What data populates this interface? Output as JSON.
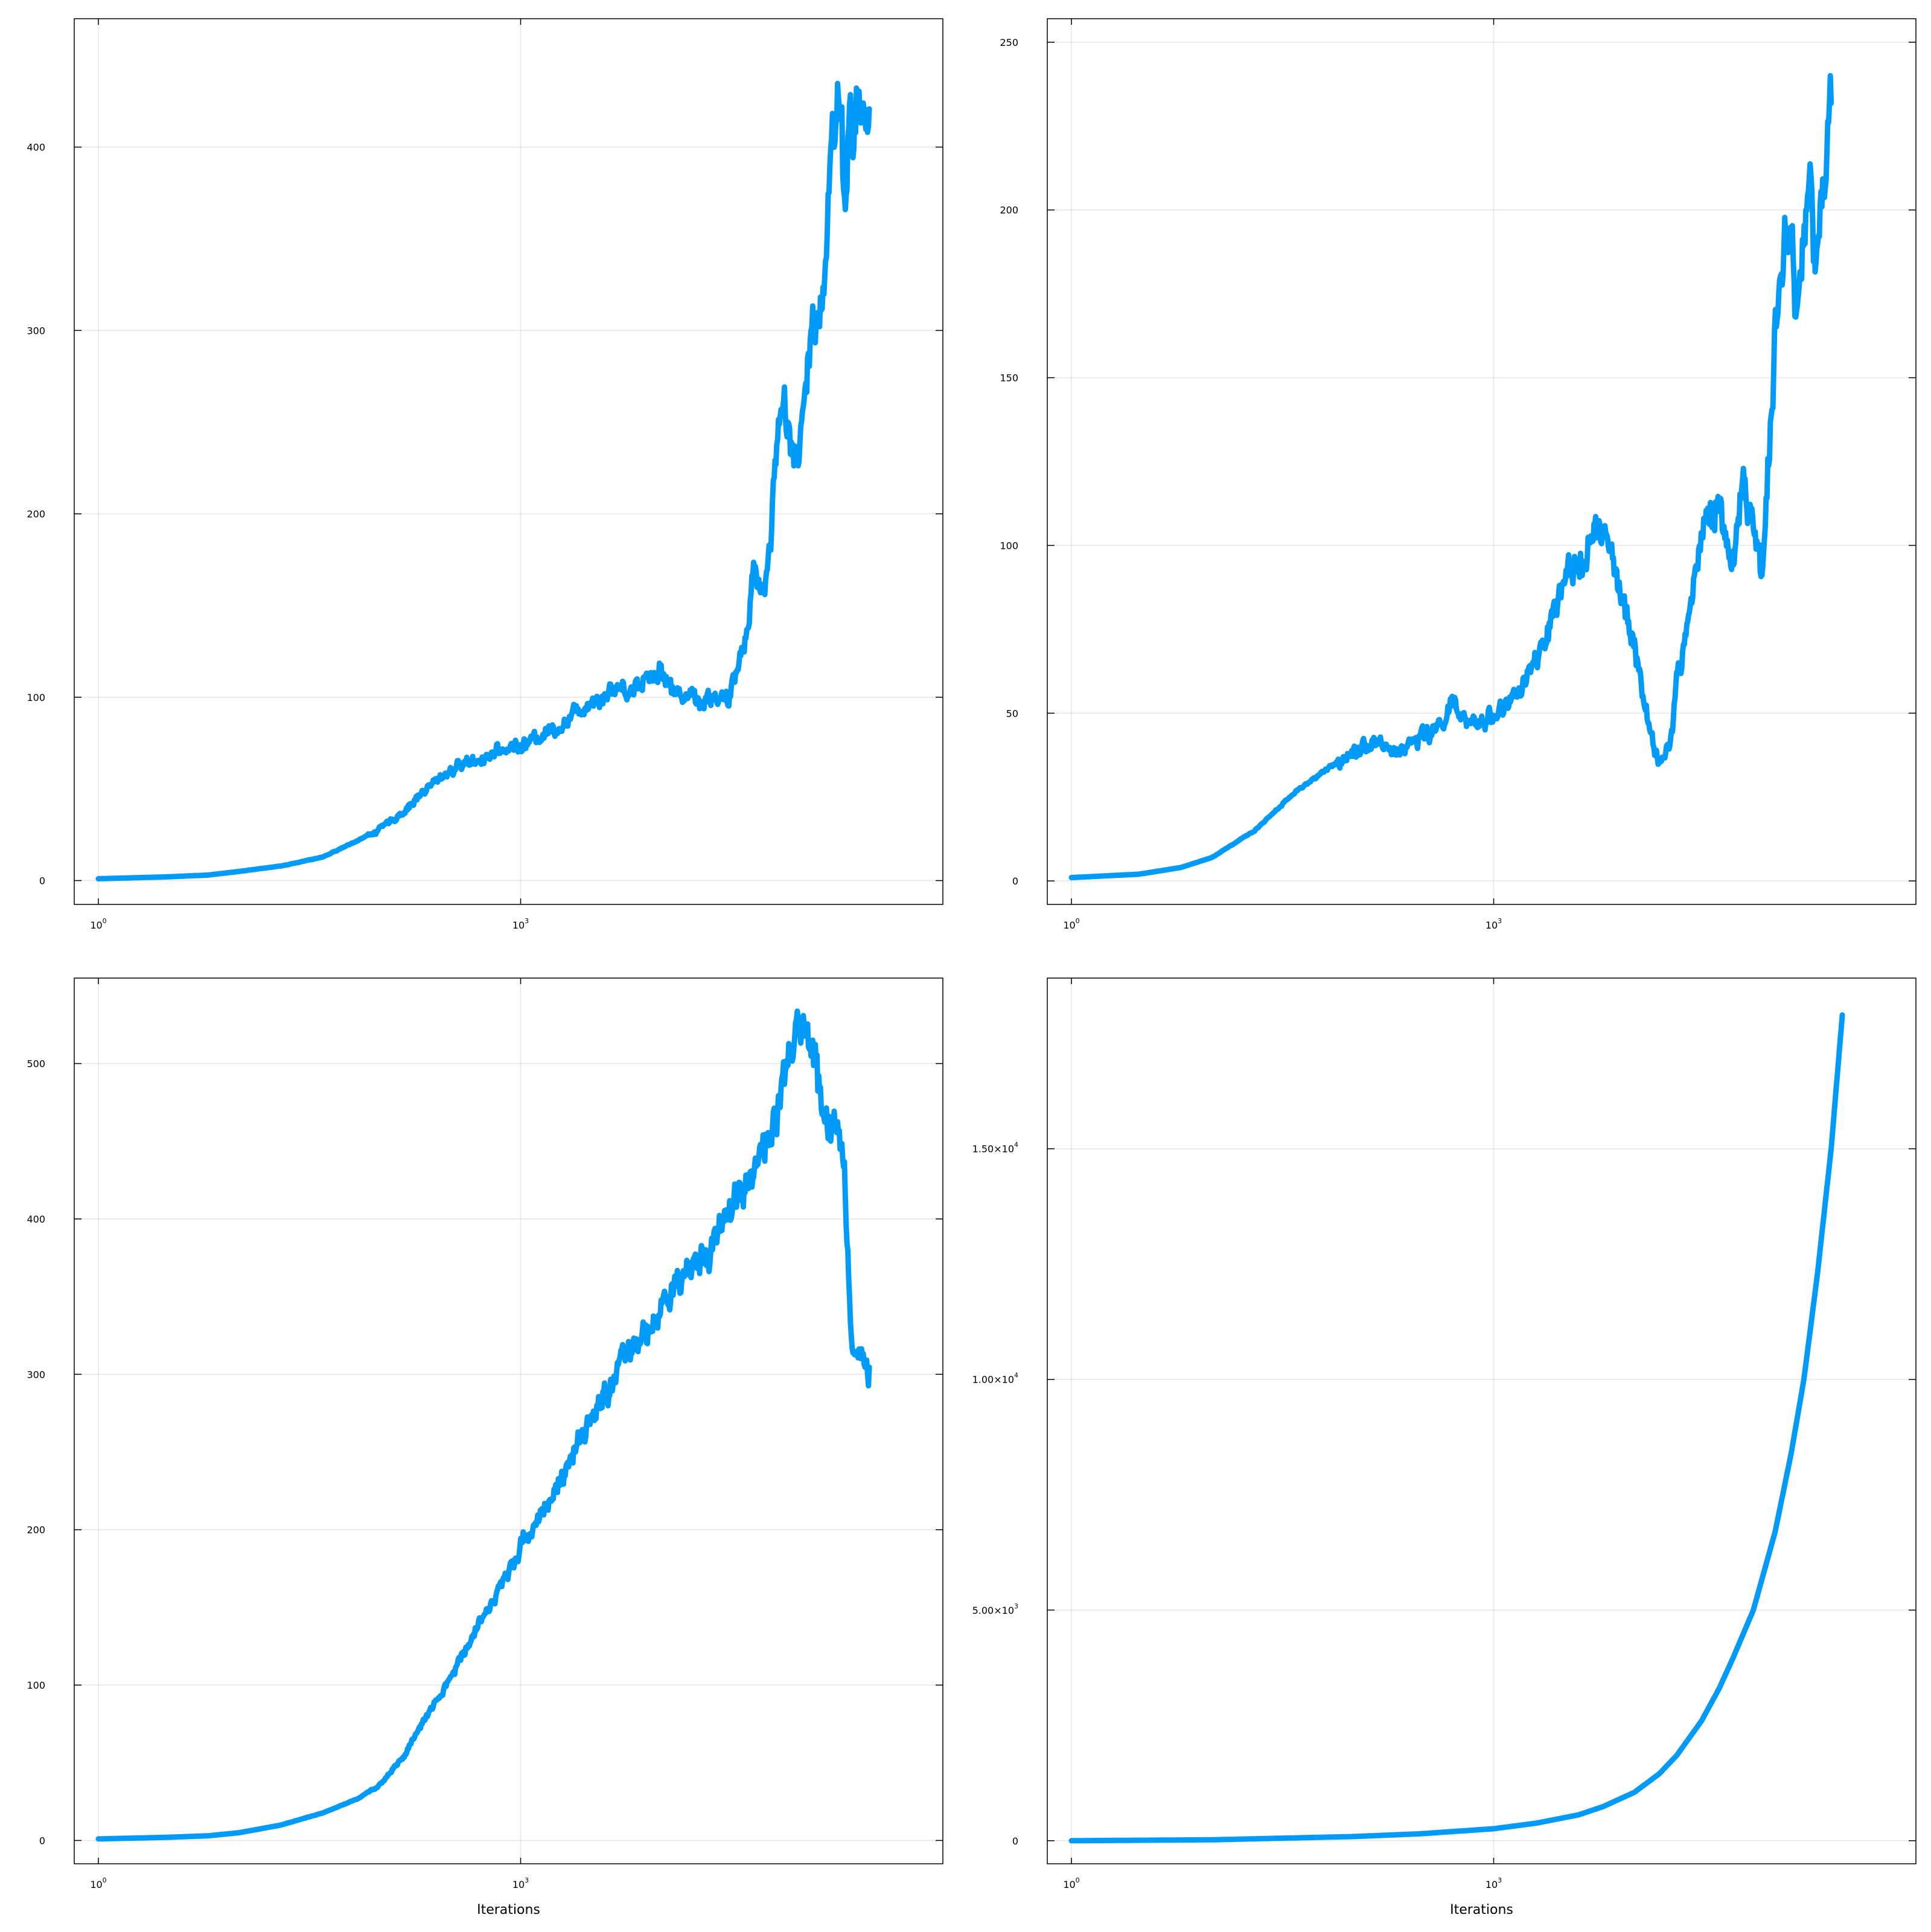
{
  "chart_data": [
    {
      "type": "line",
      "title": "",
      "xlabel": "",
      "ylabel": "",
      "xscale": "log10",
      "xlim": [
        1,
        1000000
      ],
      "ylim": [
        -13,
        470
      ],
      "grid": true,
      "legend": "none",
      "color": "#009af9",
      "xticks": [
        {
          "value": 1,
          "base": "10",
          "exp": "0"
        },
        {
          "value": 1000,
          "base": "10",
          "exp": "3"
        }
      ],
      "yticks": [
        {
          "value": 0,
          "label": "0"
        },
        {
          "value": 100,
          "label": "100"
        },
        {
          "value": 200,
          "label": "200"
        },
        {
          "value": 300,
          "label": "300"
        },
        {
          "value": 400,
          "label": "400"
        }
      ],
      "series": [
        {
          "noise": 0.06,
          "x": [
            1,
            3,
            6,
            10,
            20,
            40,
            70,
            100,
            150,
            200,
            300,
            400,
            500,
            700,
            900,
            1000,
            1300,
            1600,
            2000,
            2500,
            3000,
            4000,
            5000,
            6000,
            7000,
            8000,
            10000,
            12000,
            15000,
            20000,
            25000,
            30000,
            35000,
            40000,
            45000,
            50000,
            55000,
            60000,
            70000,
            80000,
            90000,
            100000,
            120000,
            140000,
            160000,
            180000,
            200000,
            220000,
            250000,
            300000
          ],
          "y": [
            1,
            2,
            3,
            5,
            8,
            13,
            22,
            28,
            38,
            48,
            59,
            64,
            66,
            70,
            74,
            73,
            78,
            82,
            85,
            92,
            97,
            102,
            106,
            103,
            108,
            112,
            115,
            103,
            102,
            98,
            101,
            96,
            118,
            135,
            170,
            160,
            162,
            190,
            265,
            250,
            225,
            245,
            305,
            320,
            400,
            430,
            380,
            415,
            420,
            410
          ]
        }
      ]
    },
    {
      "type": "line",
      "title": "",
      "xlabel": "",
      "ylabel": "",
      "xscale": "log10",
      "xlim": [
        1,
        1000000
      ],
      "ylim": [
        -7,
        257
      ],
      "grid": true,
      "legend": "none",
      "color": "#009af9",
      "xticks": [
        {
          "value": 1,
          "base": "10",
          "exp": "0"
        },
        {
          "value": 1000,
          "base": "10",
          "exp": "3"
        }
      ],
      "yticks": [
        {
          "value": 0,
          "label": "0"
        },
        {
          "value": 50,
          "label": "50"
        },
        {
          "value": 100,
          "label": "100"
        },
        {
          "value": 150,
          "label": "150"
        },
        {
          "value": 200,
          "label": "200"
        },
        {
          "value": 250,
          "label": "250"
        }
      ],
      "series": [
        {
          "noise": 0.07,
          "x": [
            1,
            3,
            6,
            10,
            20,
            40,
            70,
            100,
            150,
            200,
            300,
            400,
            500,
            600,
            700,
            800,
            1000,
            1300,
            1600,
            2000,
            2500,
            3000,
            4000,
            5000,
            6000,
            7000,
            8000,
            10000,
            12000,
            15000,
            18000,
            20000,
            25000,
            30000,
            35000,
            40000,
            50000,
            60000,
            70000,
            80000,
            100000,
            120000,
            140000,
            160000,
            180000,
            200000,
            250000
          ],
          "y": [
            1,
            2,
            4,
            7,
            15,
            27,
            34,
            39,
            42,
            38,
            43,
            45,
            53,
            48,
            46,
            47,
            50,
            53,
            58,
            65,
            75,
            85,
            96,
            103,
            103,
            95,
            85,
            70,
            50,
            35,
            40,
            60,
            80,
            105,
            110,
            112,
            95,
            120,
            105,
            92,
            160,
            200,
            175,
            190,
            210,
            180,
            230
          ]
        }
      ]
    },
    {
      "type": "line",
      "title": "",
      "xlabel": "Iterations",
      "ylabel": "",
      "xscale": "log10",
      "xlim": [
        1,
        1000000
      ],
      "ylim": [
        -15,
        555
      ],
      "grid": true,
      "legend": "none",
      "color": "#009af9",
      "xticks": [
        {
          "value": 1,
          "base": "10",
          "exp": "0"
        },
        {
          "value": 1000,
          "base": "10",
          "exp": "3"
        }
      ],
      "yticks": [
        {
          "value": 0,
          "label": "0"
        },
        {
          "value": 100,
          "label": "100"
        },
        {
          "value": 200,
          "label": "200"
        },
        {
          "value": 300,
          "label": "300"
        },
        {
          "value": 400,
          "label": "400"
        },
        {
          "value": 500,
          "label": "500"
        }
      ],
      "series": [
        {
          "noise": 0.035,
          "x": [
            1,
            3,
            6,
            10,
            20,
            40,
            70,
            100,
            150,
            200,
            300,
            500,
            700,
            1000,
            1500,
            2000,
            3000,
            5000,
            7000,
            10000,
            15000,
            20000,
            30000,
            40000,
            50000,
            60000,
            70000,
            80000,
            100000,
            120000,
            140000,
            160000,
            180000,
            200000,
            220000,
            250000,
            300000
          ],
          "y": [
            1,
            2,
            3,
            5,
            10,
            18,
            27,
            36,
            55,
            75,
            100,
            140,
            160,
            190,
            215,
            235,
            265,
            305,
            320,
            340,
            365,
            375,
            405,
            425,
            440,
            455,
            470,
            500,
            525,
            510,
            475,
            455,
            470,
            430,
            330,
            310,
            300
          ]
        }
      ]
    },
    {
      "type": "line",
      "title": "",
      "xlabel": "Iterations",
      "ylabel": "",
      "xscale": "log10",
      "xlim": [
        1,
        1000000
      ],
      "ylim": [
        -500,
        18700
      ],
      "grid": true,
      "legend": "none",
      "color": "#009af9",
      "xticks": [
        {
          "value": 1,
          "base": "10",
          "exp": "0"
        },
        {
          "value": 1000,
          "base": "10",
          "exp": "3"
        }
      ],
      "yticks": [
        {
          "value": 0,
          "label": "0",
          "exp": ""
        },
        {
          "value": 5000,
          "label": "5.00×10",
          "exp": "3"
        },
        {
          "value": 10000,
          "label": "1.00×10",
          "exp": "4"
        },
        {
          "value": 15000,
          "label": "1.50×10",
          "exp": "4"
        }
      ],
      "series": [
        {
          "noise": 0,
          "x": [
            1,
            10,
            100,
            300,
            1000,
            2000,
            4000,
            6000,
            10000,
            15000,
            20000,
            30000,
            40000,
            50000,
            70000,
            100000,
            130000,
            160000,
            200000,
            250000,
            300000
          ],
          "y": [
            0,
            20,
            90,
            150,
            260,
            380,
            560,
            740,
            1050,
            1450,
            1850,
            2600,
            3300,
            3950,
            5000,
            6700,
            8400,
            10000,
            12300,
            15000,
            17900
          ]
        }
      ]
    }
  ]
}
